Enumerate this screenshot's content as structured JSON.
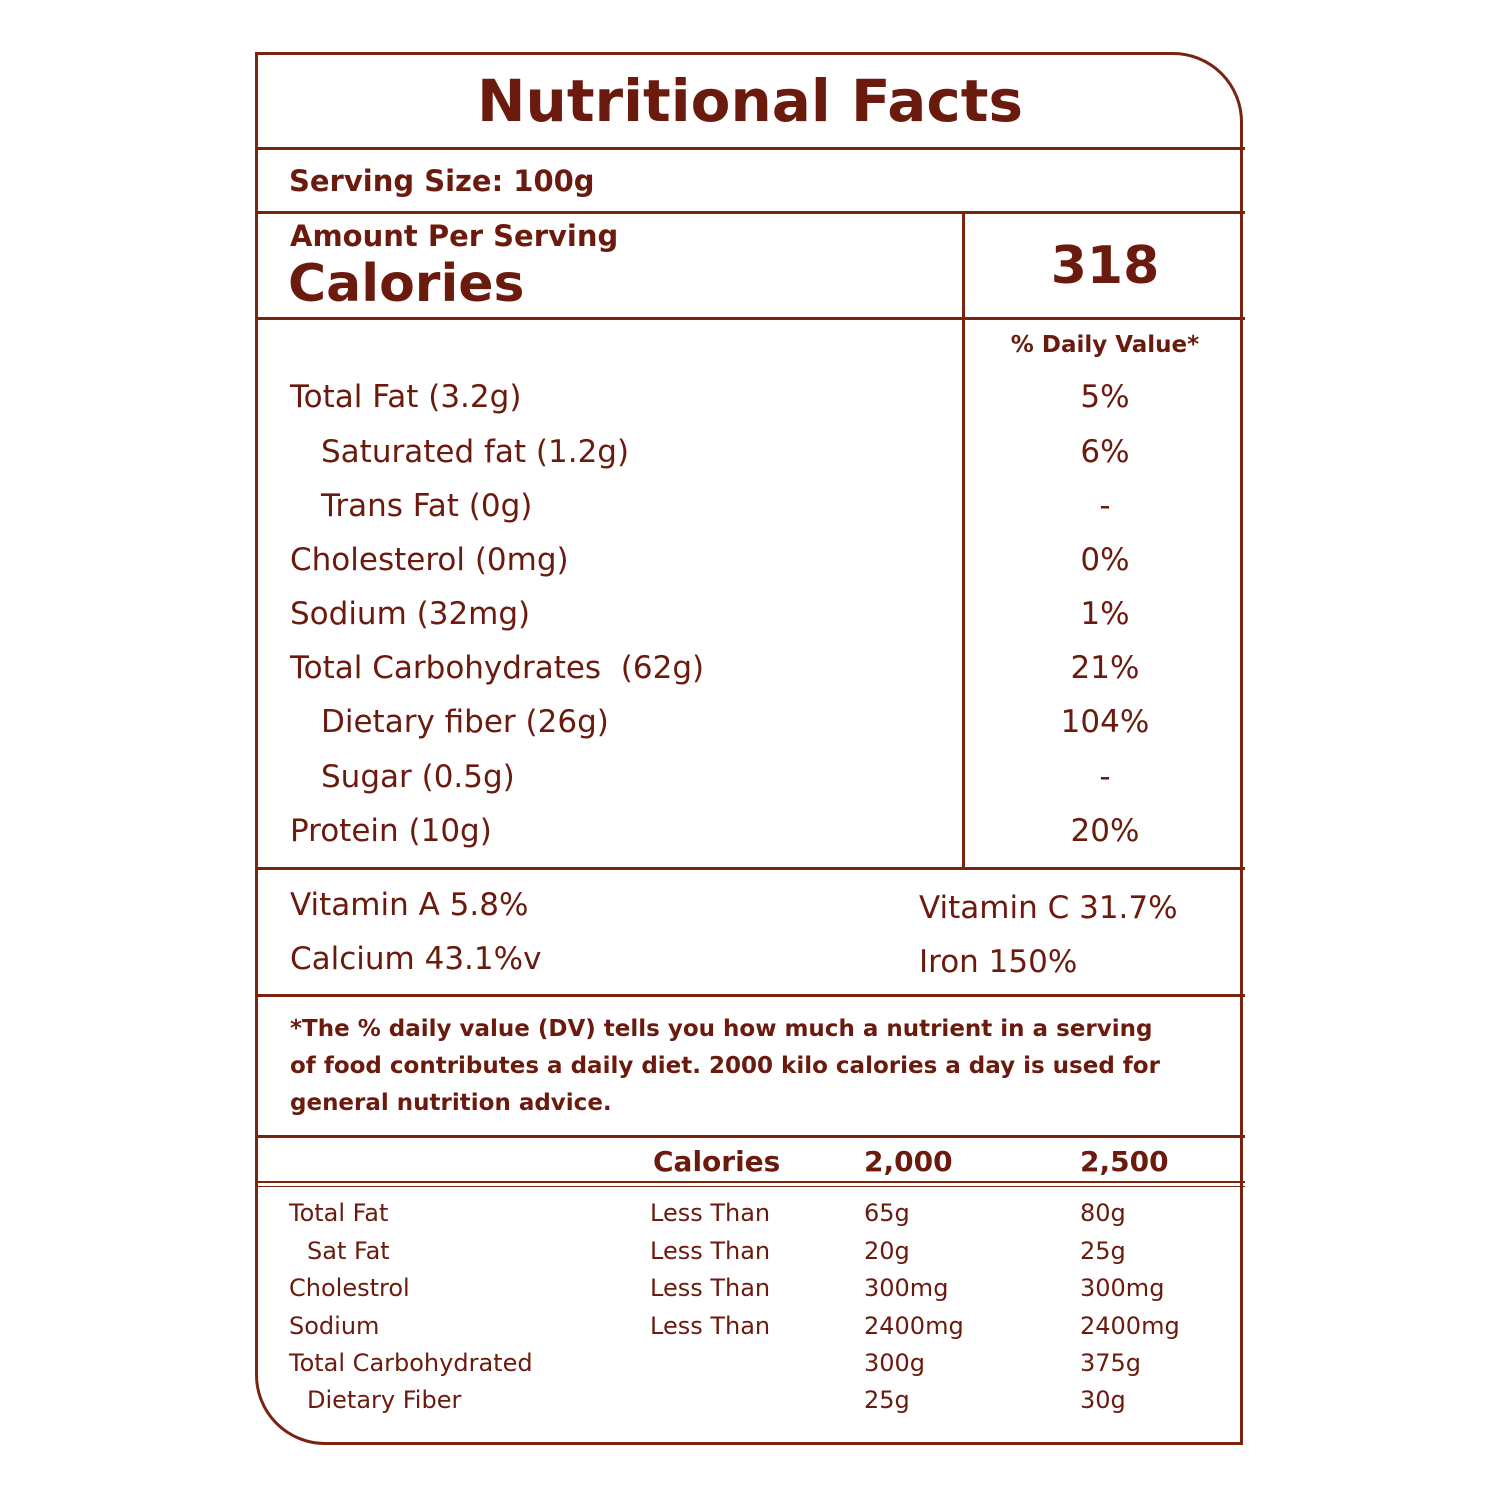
{
  "title": "Nutritional Facts",
  "serving_size": "Serving Size: 100g",
  "amount_per_serving": "Amount Per Serving",
  "calories_label": "Calories",
  "calories_value": "318",
  "daily_value_header": "% Daily Value*",
  "nutrients": [
    {
      "label": "Total Fat (3.2g)",
      "dv": "5%"
    },
    {
      "label": "Saturated fat (1.2g)",
      "dv": "6%"
    },
    {
      "label": "Trans Fat (0g)",
      "dv": "-"
    },
    {
      "label": "Cholesterol (0mg)",
      "dv": "0%"
    },
    {
      "label": "Sodium (32mg)",
      "dv": "1%"
    },
    {
      "label": "Total Carbohydrates  (62g)",
      "dv": "21%"
    },
    {
      "label": "Dietary fiber (26g)",
      "dv": "104%"
    },
    {
      "label": "Sugar (0.5g)",
      "dv": "-"
    },
    {
      "label": "Protein (10g)",
      "dv": "20%"
    }
  ],
  "vitamins": {
    "vitamin_a": "Vitamin A 5.8%",
    "vitamin_c": "Vitamin C 31.7%",
    "calcium": "Calcium 43.1%v",
    "iron": "Iron 150%"
  },
  "footnote": [
    "*The % daily value (DV) tells you how much a nutrient in a serving",
    "of food contributes a daily diet. 2000 kilo calories a day is used for",
    "general nutrition advice."
  ],
  "reference_table": {
    "headers": [
      "Calories",
      "2,000",
      "2,500"
    ],
    "rows": [
      {
        "label": "Total Fat",
        "qualifier": "Less Than",
        "v2000": "65g",
        "v2500": "80g"
      },
      {
        "label": "Sat Fat",
        "qualifier": "Less Than",
        "v2000": "20g",
        "v2500": "25g"
      },
      {
        "label": "Cholestrol",
        "qualifier": "Less Than",
        "v2000": "300mg",
        "v2500": "300mg"
      },
      {
        "label": "Sodium",
        "qualifier": "Less Than",
        "v2000": "2400mg",
        "v2500": "2400mg"
      },
      {
        "label": "Total Carbohydrated",
        "qualifier": "",
        "v2000": "300g",
        "v2500": "375g"
      },
      {
        "label": "Dietary Fiber",
        "qualifier": "",
        "v2000": "25g",
        "v2500": "30g"
      }
    ]
  },
  "colors": {
    "primary": "#7a2410",
    "text": "#6b1a0e"
  }
}
